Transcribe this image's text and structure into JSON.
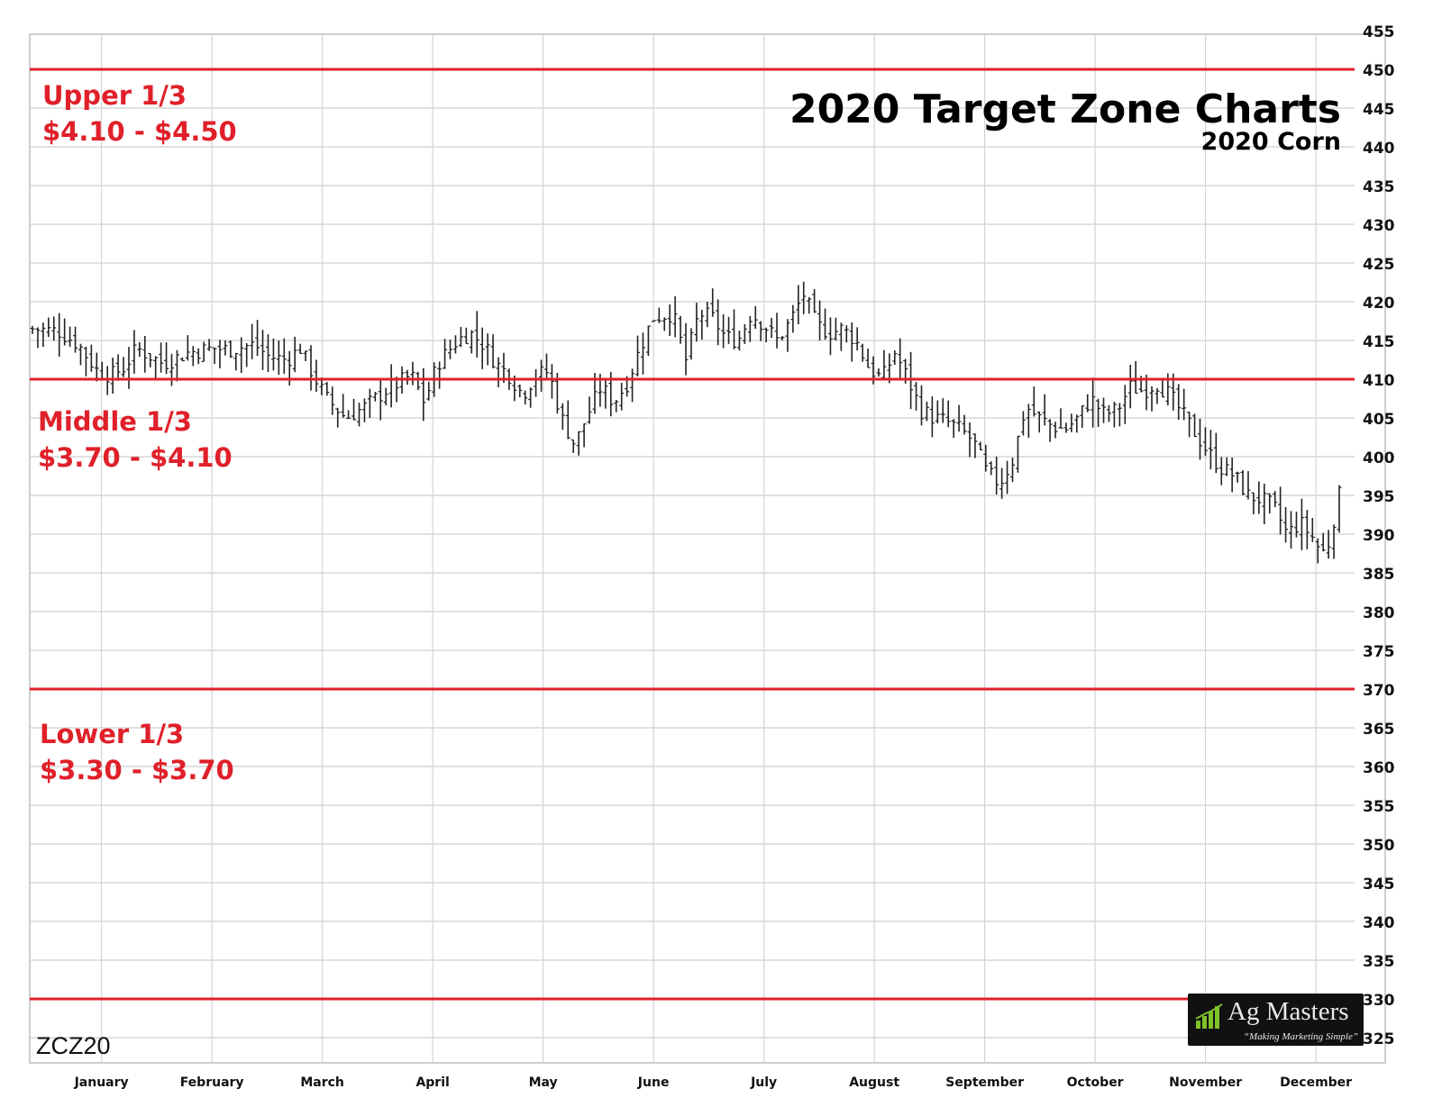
{
  "chart_data": {
    "type": "ohlc",
    "title": "2020 Target Zone Charts",
    "subtitle": "2020 Corn",
    "symbol": "ZCZ20",
    "ylim": [
      325,
      455
    ],
    "yticks": [
      325,
      330,
      335,
      340,
      345,
      350,
      355,
      360,
      365,
      370,
      375,
      380,
      385,
      390,
      395,
      400,
      405,
      410,
      415,
      420,
      425,
      430,
      435,
      440,
      445,
      450,
      455
    ],
    "months": [
      "January",
      "February",
      "March",
      "April",
      "May",
      "June",
      "July",
      "August",
      "September",
      "October",
      "November",
      "December"
    ],
    "grid": true,
    "zones": [
      {
        "name": "Upper 1/3",
        "range": "$4.10 - $4.50",
        "low": 410,
        "high": 450
      },
      {
        "name": "Middle 1/3",
        "range": "$3.70 - $4.10",
        "low": 370,
        "high": 410
      },
      {
        "name": "Lower 1/3",
        "range": "$3.30 - $3.70",
        "low": 330,
        "high": 370
      }
    ],
    "zone_lines": [
      450,
      410,
      370,
      330
    ],
    "zone_line_color": "#e0202a",
    "bar_color": "#222222",
    "close_trend": [
      [
        0.0,
        416.5
      ],
      [
        0.02,
        416.2
      ],
      [
        0.035,
        414.5
      ],
      [
        0.05,
        411.0
      ],
      [
        0.06,
        410.5
      ],
      [
        0.07,
        411.5
      ],
      [
        0.08,
        414.0
      ],
      [
        0.09,
        413.0
      ],
      [
        0.1,
        412.0
      ],
      [
        0.12,
        413.5
      ],
      [
        0.14,
        414.0
      ],
      [
        0.15,
        413.8
      ],
      [
        0.17,
        414.5
      ],
      [
        0.18,
        413.0
      ],
      [
        0.195,
        412.5
      ],
      [
        0.205,
        414.0
      ],
      [
        0.215,
        410.5
      ],
      [
        0.225,
        407.5
      ],
      [
        0.24,
        405.0
      ],
      [
        0.255,
        406.5
      ],
      [
        0.27,
        408.5
      ],
      [
        0.29,
        410.5
      ],
      [
        0.3,
        407.0
      ],
      [
        0.31,
        412.0
      ],
      [
        0.325,
        415.0
      ],
      [
        0.335,
        416.0
      ],
      [
        0.345,
        414.5
      ],
      [
        0.355,
        412.0
      ],
      [
        0.365,
        410.5
      ],
      [
        0.375,
        408.0
      ],
      [
        0.385,
        410.5
      ],
      [
        0.395,
        411.0
      ],
      [
        0.405,
        405.0
      ],
      [
        0.415,
        401.5
      ],
      [
        0.425,
        405.5
      ],
      [
        0.435,
        409.0
      ],
      [
        0.445,
        407.0
      ],
      [
        0.455,
        409.5
      ],
      [
        0.465,
        414.0
      ],
      [
        0.475,
        418.0
      ],
      [
        0.49,
        418.5
      ],
      [
        0.5,
        412.5
      ],
      [
        0.51,
        418.5
      ],
      [
        0.52,
        418.0
      ],
      [
        0.53,
        415.5
      ],
      [
        0.54,
        415.0
      ],
      [
        0.55,
        418.5
      ],
      [
        0.56,
        417.0
      ],
      [
        0.57,
        415.0
      ],
      [
        0.58,
        417.5
      ],
      [
        0.59,
        421.0
      ],
      [
        0.6,
        417.0
      ],
      [
        0.61,
        416.0
      ],
      [
        0.62,
        416.5
      ],
      [
        0.63,
        415.0
      ],
      [
        0.64,
        411.5
      ],
      [
        0.65,
        410.0
      ],
      [
        0.66,
        413.5
      ],
      [
        0.67,
        410.0
      ],
      [
        0.68,
        406.0
      ],
      [
        0.69,
        405.0
      ],
      [
        0.7,
        404.5
      ],
      [
        0.71,
        403.5
      ],
      [
        0.72,
        402.0
      ],
      [
        0.73,
        398.0
      ],
      [
        0.74,
        396.5
      ],
      [
        0.75,
        399.5
      ],
      [
        0.76,
        406.5
      ],
      [
        0.77,
        405.0
      ],
      [
        0.78,
        404.0
      ],
      [
        0.79,
        403.5
      ],
      [
        0.8,
        405.0
      ],
      [
        0.81,
        407.5
      ],
      [
        0.82,
        405.5
      ],
      [
        0.83,
        406.0
      ],
      [
        0.84,
        409.0
      ],
      [
        0.85,
        408.5
      ],
      [
        0.86,
        409.5
      ],
      [
        0.87,
        408.0
      ],
      [
        0.88,
        405.5
      ],
      [
        0.89,
        403.0
      ],
      [
        0.9,
        400.5
      ],
      [
        0.91,
        398.5
      ],
      [
        0.92,
        397.5
      ],
      [
        0.93,
        395.0
      ],
      [
        0.94,
        394.5
      ],
      [
        0.95,
        393.5
      ],
      [
        0.96,
        390.0
      ],
      [
        0.97,
        391.5
      ],
      [
        0.98,
        389.5
      ],
      [
        0.985,
        388.0
      ],
      [
        0.99,
        387.5
      ],
      [
        1.0,
        395.0
      ]
    ]
  },
  "logo": {
    "name": "Ag Masters",
    "tagline": "“Making Marketing Simple”",
    "bar_color": "#7ec12a"
  }
}
